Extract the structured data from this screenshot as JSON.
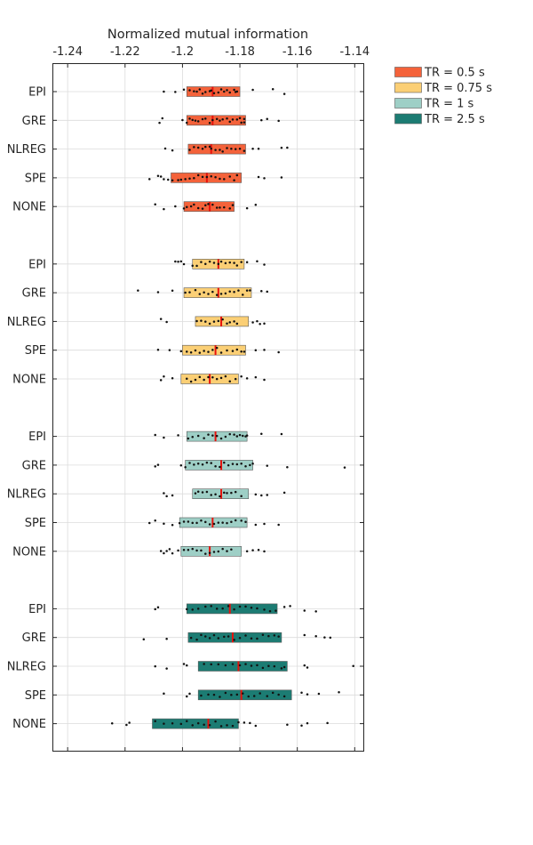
{
  "chart_data": {
    "type": "box",
    "xlabel": "Normalized mutual information",
    "xlim": [
      -1.245,
      -1.137
    ],
    "xticks": [
      -1.24,
      -1.22,
      -1.2,
      -1.18,
      -1.16,
      -1.14
    ],
    "xtick_labels": [
      "-1.24",
      "-1.22",
      "-1.2",
      "-1.18",
      "-1.16",
      "-1.14"
    ],
    "x_axis_position": "top",
    "grid": true,
    "legend_position": "outside-top-right",
    "categories": [
      "EPI",
      "GRE",
      "NLREG",
      "SPE",
      "NONE"
    ],
    "series": [
      {
        "name": "TR = 0.5 s",
        "color": "#f4623a",
        "groups": [
          {
            "category": "EPI",
            "q1": -1.1985,
            "median": -1.1895,
            "q3": -1.18,
            "points": [
              -1.2065,
              -1.2025,
              -1.1995,
              -1.1975,
              -1.196,
              -1.195,
              -1.194,
              -1.193,
              -1.192,
              -1.1905,
              -1.19,
              -1.189,
              -1.1875,
              -1.1865,
              -1.1855,
              -1.1845,
              -1.1835,
              -1.182,
              -1.1815,
              -1.181,
              -1.1755,
              -1.1685,
              -1.1645
            ]
          },
          {
            "category": "GRE",
            "q1": -1.1985,
            "median": -1.1895,
            "q3": -1.178,
            "points": [
              -1.208,
              -1.207,
              -1.2,
              -1.1985,
              -1.1975,
              -1.1965,
              -1.1955,
              -1.1945,
              -1.193,
              -1.192,
              -1.1905,
              -1.1895,
              -1.188,
              -1.187,
              -1.186,
              -1.1845,
              -1.1835,
              -1.1825,
              -1.181,
              -1.18,
              -1.1795,
              -1.1785,
              -1.1785,
              -1.1725,
              -1.1705,
              -1.1665
            ]
          },
          {
            "category": "NLREG",
            "q1": -1.198,
            "median": -1.19,
            "q3": -1.178,
            "points": [
              -1.206,
              -1.2035,
              -1.1975,
              -1.196,
              -1.1945,
              -1.193,
              -1.192,
              -1.1905,
              -1.19,
              -1.1885,
              -1.187,
              -1.186,
              -1.1845,
              -1.183,
              -1.1815,
              -1.18,
              -1.1785,
              -1.1755,
              -1.1735,
              -1.1655,
              -1.1635
            ]
          },
          {
            "category": "SPE",
            "q1": -1.204,
            "median": -1.1915,
            "q3": -1.1795,
            "points": [
              -1.2115,
              -1.2085,
              -1.2075,
              -1.2065,
              -1.205,
              -1.2035,
              -1.2015,
              -1.2005,
              -1.199,
              -1.1975,
              -1.196,
              -1.1945,
              -1.193,
              -1.1915,
              -1.19,
              -1.1885,
              -1.187,
              -1.1855,
              -1.1835,
              -1.182,
              -1.181,
              -1.1735,
              -1.1715,
              -1.1655
            ]
          },
          {
            "category": "NONE",
            "q1": -1.1995,
            "median": -1.1905,
            "q3": -1.182,
            "points": [
              -1.2095,
              -1.2065,
              -1.2025,
              -1.1995,
              -1.1985,
              -1.197,
              -1.196,
              -1.1945,
              -1.193,
              -1.192,
              -1.191,
              -1.1895,
              -1.188,
              -1.187,
              -1.1855,
              -1.1835,
              -1.1825,
              -1.1775,
              -1.1745
            ]
          }
        ]
      },
      {
        "name": "TR = 0.75 s",
        "color": "#fbcf75",
        "groups": [
          {
            "category": "EPI",
            "q1": -1.1965,
            "median": -1.1875,
            "q3": -1.1785,
            "points": [
              -1.2025,
              -1.2015,
              -1.2005,
              -1.1995,
              -1.1965,
              -1.195,
              -1.1935,
              -1.192,
              -1.1905,
              -1.189,
              -1.1875,
              -1.1865,
              -1.185,
              -1.1835,
              -1.182,
              -1.181,
              -1.1795,
              -1.1775,
              -1.174,
              -1.1715
            ]
          },
          {
            "category": "GRE",
            "q1": -1.1995,
            "median": -1.1875,
            "q3": -1.176,
            "points": [
              -1.2155,
              -1.2085,
              -1.2035,
              -1.199,
              -1.1975,
              -1.1955,
              -1.194,
              -1.1925,
              -1.191,
              -1.1895,
              -1.188,
              -1.1865,
              -1.185,
              -1.1835,
              -1.182,
              -1.1805,
              -1.179,
              -1.1775,
              -1.1765,
              -1.1725,
              -1.1705
            ]
          },
          {
            "category": "NLREG",
            "q1": -1.1955,
            "median": -1.1865,
            "q3": -1.177,
            "points": [
              -1.2075,
              -1.2055,
              -1.195,
              -1.1935,
              -1.192,
              -1.1905,
              -1.189,
              -1.1875,
              -1.186,
              -1.1845,
              -1.1835,
              -1.182,
              -1.181,
              -1.1755,
              -1.174,
              -1.173,
              -1.1715
            ]
          },
          {
            "category": "SPE",
            "q1": -1.2,
            "median": -1.1885,
            "q3": -1.178,
            "points": [
              -1.2085,
              -1.2045,
              -1.2005,
              -1.1985,
              -1.197,
              -1.1955,
              -1.194,
              -1.1925,
              -1.191,
              -1.1895,
              -1.188,
              -1.1865,
              -1.1845,
              -1.1825,
              -1.181,
              -1.1795,
              -1.1785,
              -1.1745,
              -1.1715,
              -1.1665
            ]
          },
          {
            "category": "NONE",
            "q1": -1.2005,
            "median": -1.1905,
            "q3": -1.1805,
            "points": [
              -1.2075,
              -1.2065,
              -1.2035,
              -1.1985,
              -1.197,
              -1.1955,
              -1.194,
              -1.1925,
              -1.191,
              -1.1895,
              -1.188,
              -1.1865,
              -1.185,
              -1.1835,
              -1.1815,
              -1.1795,
              -1.1775,
              -1.1745,
              -1.1715
            ]
          }
        ]
      },
      {
        "name": "TR = 1 s",
        "color": "#9ecfc6",
        "groups": [
          {
            "category": "EPI",
            "q1": -1.1985,
            "median": -1.1885,
            "q3": -1.1775,
            "points": [
              -1.2095,
              -1.2065,
              -1.2015,
              -1.198,
              -1.1965,
              -1.1945,
              -1.1925,
              -1.191,
              -1.1895,
              -1.188,
              -1.1865,
              -1.185,
              -1.1835,
              -1.182,
              -1.181,
              -1.18,
              -1.179,
              -1.178,
              -1.1775,
              -1.1725,
              -1.1655
            ]
          },
          {
            "category": "GRE",
            "q1": -1.199,
            "median": -1.1865,
            "q3": -1.1755,
            "points": [
              -1.2095,
              -1.2085,
              -1.2005,
              -1.199,
              -1.1975,
              -1.196,
              -1.1945,
              -1.193,
              -1.1915,
              -1.19,
              -1.1885,
              -1.187,
              -1.1855,
              -1.184,
              -1.1825,
              -1.181,
              -1.1795,
              -1.178,
              -1.1765,
              -1.1755,
              -1.1705,
              -1.1635,
              -1.1435
            ]
          },
          {
            "category": "NLREG",
            "q1": -1.1965,
            "median": -1.1865,
            "q3": -1.177,
            "points": [
              -1.2065,
              -1.2055,
              -1.2035,
              -1.1955,
              -1.1945,
              -1.193,
              -1.1915,
              -1.19,
              -1.1885,
              -1.187,
              -1.1855,
              -1.1845,
              -1.183,
              -1.1815,
              -1.1795,
              -1.1745,
              -1.1725,
              -1.1705,
              -1.1645
            ]
          },
          {
            "category": "SPE",
            "q1": -1.201,
            "median": -1.1895,
            "q3": -1.1775,
            "points": [
              -1.2115,
              -1.2095,
              -1.2065,
              -1.2035,
              -1.201,
              -1.1995,
              -1.198,
              -1.1965,
              -1.195,
              -1.1935,
              -1.192,
              -1.1905,
              -1.189,
              -1.1875,
              -1.186,
              -1.1845,
              -1.183,
              -1.1815,
              -1.1795,
              -1.178,
              -1.1745,
              -1.1715,
              -1.1665
            ]
          },
          {
            "category": "NONE",
            "q1": -1.2005,
            "median": -1.1905,
            "q3": -1.1795,
            "points": [
              -1.2075,
              -1.2065,
              -1.2055,
              -1.2045,
              -1.2035,
              -1.2015,
              -1.1995,
              -1.198,
              -1.1965,
              -1.195,
              -1.1935,
              -1.192,
              -1.1905,
              -1.189,
              -1.1875,
              -1.186,
              -1.1845,
              -1.183,
              -1.1775,
              -1.1755,
              -1.1735,
              -1.1715
            ]
          }
        ]
      },
      {
        "name": "TR = 2.5 s",
        "color": "#1c7c73",
        "groups": [
          {
            "category": "EPI",
            "q1": -1.1985,
            "median": -1.1835,
            "q3": -1.167,
            "points": [
              -1.2095,
              -1.2085,
              -1.1985,
              -1.1965,
              -1.1945,
              -1.192,
              -1.19,
              -1.188,
              -1.186,
              -1.184,
              -1.182,
              -1.18,
              -1.178,
              -1.176,
              -1.174,
              -1.1715,
              -1.1695,
              -1.1675,
              -1.1645,
              -1.1625,
              -1.1575,
              -1.1535
            ]
          },
          {
            "category": "GRE",
            "q1": -1.198,
            "median": -1.1825,
            "q3": -1.1655,
            "points": [
              -1.2135,
              -1.2055,
              -1.197,
              -1.195,
              -1.1935,
              -1.192,
              -1.1905,
              -1.189,
              -1.1875,
              -1.1855,
              -1.184,
              -1.182,
              -1.18,
              -1.178,
              -1.176,
              -1.174,
              -1.172,
              -1.17,
              -1.168,
              -1.1665,
              -1.1575,
              -1.1535,
              -1.1505,
              -1.1485
            ]
          },
          {
            "category": "NLREG",
            "q1": -1.1945,
            "median": -1.1805,
            "q3": -1.1635,
            "points": [
              -1.2095,
              -1.2055,
              -1.1995,
              -1.1985,
              -1.1925,
              -1.19,
              -1.1875,
              -1.185,
              -1.1825,
              -1.18,
              -1.178,
              -1.176,
              -1.174,
              -1.172,
              -1.17,
              -1.168,
              -1.1655,
              -1.1645,
              -1.1575,
              -1.1565,
              -1.1405
            ]
          },
          {
            "category": "SPE",
            "q1": -1.1945,
            "median": -1.1795,
            "q3": -1.162,
            "points": [
              -1.2065,
              -1.1985,
              -1.1975,
              -1.1935,
              -1.191,
              -1.189,
              -1.187,
              -1.185,
              -1.183,
              -1.181,
              -1.179,
              -1.177,
              -1.175,
              -1.173,
              -1.1705,
              -1.1685,
              -1.1665,
              -1.1645,
              -1.1585,
              -1.1565,
              -1.1525,
              -1.1455
            ]
          },
          {
            "category": "NONE",
            "q1": -1.2105,
            "median": -1.191,
            "q3": -1.1805,
            "points": [
              -1.2245,
              -1.2195,
              -1.2185,
              -1.2095,
              -1.2065,
              -1.2035,
              -1.2005,
              -1.1985,
              -1.1965,
              -1.1945,
              -1.1925,
              -1.1905,
              -1.1885,
              -1.1865,
              -1.1845,
              -1.1825,
              -1.1805,
              -1.1785,
              -1.1765,
              -1.1745,
              -1.1635,
              -1.1585,
              -1.1565,
              -1.1495
            ]
          }
        ]
      }
    ]
  }
}
